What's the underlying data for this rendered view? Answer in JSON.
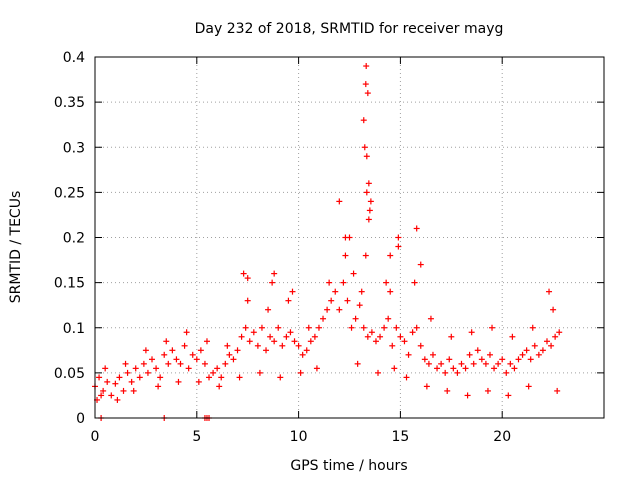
{
  "chart_data": {
    "type": "scatter",
    "title": "Day 232 of 2018, SRMTID for receiver mayg",
    "xlabel": "GPS time / hours",
    "ylabel": "SRMTID / TECUs",
    "xlim": [
      0,
      25
    ],
    "ylim": [
      0,
      0.4
    ],
    "x_ticks": [
      0,
      5,
      10,
      15,
      20
    ],
    "x_tick_labels": [
      "0",
      "5",
      "10",
      "15",
      "20"
    ],
    "y_ticks": [
      0,
      0.05,
      0.1,
      0.15,
      0.2,
      0.25,
      0.3,
      0.35,
      0.4
    ],
    "y_tick_labels": [
      "0",
      "0.05",
      "0.1",
      "0.15",
      "0.2",
      "0.25",
      "0.3",
      "0.35",
      "0.4"
    ],
    "grid": true,
    "marker": "+",
    "color": "#ff0000",
    "series": [
      {
        "name": "SRMTID",
        "points": [
          [
            0.0,
            0.035
          ],
          [
            0.2,
            0.045
          ],
          [
            0.4,
            0.03
          ],
          [
            0.6,
            0.04
          ],
          [
            0.8,
            0.025
          ],
          [
            1.0,
            0.038
          ],
          [
            1.2,
            0.045
          ],
          [
            1.4,
            0.03
          ],
          [
            1.6,
            0.05
          ],
          [
            1.8,
            0.04
          ],
          [
            2.0,
            0.055
          ],
          [
            2.2,
            0.045
          ],
          [
            2.4,
            0.06
          ],
          [
            2.6,
            0.05
          ],
          [
            2.8,
            0.065
          ],
          [
            3.0,
            0.055
          ],
          [
            3.2,
            0.045
          ],
          [
            3.4,
            0.07
          ],
          [
            3.6,
            0.06
          ],
          [
            3.8,
            0.075
          ],
          [
            4.0,
            0.065
          ],
          [
            4.2,
            0.06
          ],
          [
            4.4,
            0.08
          ],
          [
            4.6,
            0.055
          ],
          [
            4.8,
            0.07
          ],
          [
            5.0,
            0.065
          ],
          [
            5.2,
            0.075
          ],
          [
            5.4,
            0.06
          ],
          [
            5.6,
            0.045
          ],
          [
            5.8,
            0.05
          ],
          [
            6.0,
            0.055
          ],
          [
            6.2,
            0.045
          ],
          [
            6.4,
            0.06
          ],
          [
            6.6,
            0.07
          ],
          [
            6.8,
            0.065
          ],
          [
            7.0,
            0.075
          ],
          [
            7.2,
            0.09
          ],
          [
            7.4,
            0.1
          ],
          [
            7.6,
            0.085
          ],
          [
            7.8,
            0.095
          ],
          [
            8.0,
            0.08
          ],
          [
            8.2,
            0.1
          ],
          [
            8.4,
            0.075
          ],
          [
            8.6,
            0.09
          ],
          [
            8.8,
            0.085
          ],
          [
            9.0,
            0.1
          ],
          [
            9.2,
            0.08
          ],
          [
            9.4,
            0.09
          ],
          [
            9.6,
            0.095
          ],
          [
            9.8,
            0.085
          ],
          [
            10.0,
            0.08
          ],
          [
            10.2,
            0.07
          ],
          [
            10.4,
            0.075
          ],
          [
            10.6,
            0.085
          ],
          [
            10.8,
            0.09
          ],
          [
            11.0,
            0.1
          ],
          [
            11.2,
            0.11
          ],
          [
            11.4,
            0.12
          ],
          [
            11.6,
            0.13
          ],
          [
            11.8,
            0.14
          ],
          [
            12.0,
            0.12
          ],
          [
            12.2,
            0.15
          ],
          [
            12.4,
            0.13
          ],
          [
            12.6,
            0.1
          ],
          [
            12.8,
            0.11
          ],
          [
            13.0,
            0.125
          ],
          [
            13.2,
            0.1
          ],
          [
            13.4,
            0.09
          ],
          [
            13.6,
            0.095
          ],
          [
            13.8,
            0.085
          ],
          [
            14.0,
            0.09
          ],
          [
            14.2,
            0.1
          ],
          [
            14.4,
            0.11
          ],
          [
            14.6,
            0.08
          ],
          [
            14.8,
            0.1
          ],
          [
            15.0,
            0.09
          ],
          [
            15.2,
            0.085
          ],
          [
            15.4,
            0.07
          ],
          [
            15.6,
            0.095
          ],
          [
            15.8,
            0.1
          ],
          [
            16.0,
            0.08
          ],
          [
            16.2,
            0.065
          ],
          [
            16.4,
            0.06
          ],
          [
            16.6,
            0.07
          ],
          [
            16.8,
            0.055
          ],
          [
            17.0,
            0.06
          ],
          [
            17.2,
            0.05
          ],
          [
            17.4,
            0.065
          ],
          [
            17.6,
            0.055
          ],
          [
            17.8,
            0.05
          ],
          [
            18.0,
            0.06
          ],
          [
            18.2,
            0.055
          ],
          [
            18.4,
            0.07
          ],
          [
            18.6,
            0.06
          ],
          [
            18.8,
            0.075
          ],
          [
            19.0,
            0.065
          ],
          [
            19.2,
            0.06
          ],
          [
            19.4,
            0.07
          ],
          [
            19.6,
            0.055
          ],
          [
            19.8,
            0.06
          ],
          [
            20.0,
            0.065
          ],
          [
            20.2,
            0.05
          ],
          [
            20.4,
            0.06
          ],
          [
            20.6,
            0.055
          ],
          [
            20.8,
            0.065
          ],
          [
            21.0,
            0.07
          ],
          [
            21.2,
            0.075
          ],
          [
            21.4,
            0.065
          ],
          [
            21.6,
            0.08
          ],
          [
            21.8,
            0.07
          ],
          [
            22.0,
            0.075
          ],
          [
            22.2,
            0.085
          ],
          [
            22.4,
            0.08
          ],
          [
            22.6,
            0.09
          ],
          [
            22.8,
            0.095
          ],
          [
            0.5,
            0.055
          ],
          [
            1.5,
            0.06
          ],
          [
            2.5,
            0.075
          ],
          [
            3.5,
            0.085
          ],
          [
            4.5,
            0.095
          ],
          [
            5.5,
            0.085
          ],
          [
            6.5,
            0.08
          ],
          [
            7.5,
            0.13
          ],
          [
            8.5,
            0.12
          ],
          [
            9.5,
            0.13
          ],
          [
            10.5,
            0.1
          ],
          [
            11.5,
            0.15
          ],
          [
            12.3,
            0.18
          ],
          [
            12.5,
            0.2
          ],
          [
            12.7,
            0.16
          ],
          [
            13.1,
            0.14
          ],
          [
            13.3,
            0.18
          ],
          [
            13.35,
            0.25
          ],
          [
            13.45,
            0.22
          ],
          [
            13.55,
            0.24
          ],
          [
            14.3,
            0.15
          ],
          [
            14.5,
            0.14
          ],
          [
            14.9,
            0.19
          ],
          [
            15.7,
            0.15
          ],
          [
            16.5,
            0.11
          ],
          [
            17.5,
            0.09
          ],
          [
            18.5,
            0.095
          ],
          [
            19.5,
            0.1
          ],
          [
            20.5,
            0.09
          ],
          [
            21.5,
            0.1
          ],
          [
            22.5,
            0.12
          ],
          [
            22.3,
            0.14
          ],
          [
            7.3,
            0.16
          ],
          [
            8.7,
            0.15
          ],
          [
            9.7,
            0.14
          ],
          [
            12.0,
            0.24
          ],
          [
            12.3,
            0.2
          ],
          [
            13.2,
            0.33
          ],
          [
            13.25,
            0.3
          ],
          [
            13.3,
            0.37
          ],
          [
            13.32,
            0.39
          ],
          [
            13.4,
            0.36
          ],
          [
            13.35,
            0.29
          ],
          [
            13.45,
            0.26
          ],
          [
            13.5,
            0.23
          ],
          [
            14.5,
            0.18
          ],
          [
            14.9,
            0.2
          ],
          [
            15.8,
            0.21
          ],
          [
            16.0,
            0.17
          ],
          [
            7.5,
            0.155
          ],
          [
            8.8,
            0.16
          ],
          [
            0.1,
            0.02
          ],
          [
            0.3,
            0.025
          ],
          [
            1.1,
            0.02
          ],
          [
            1.9,
            0.03
          ],
          [
            3.1,
            0.035
          ],
          [
            4.1,
            0.04
          ],
          [
            5.1,
            0.04
          ],
          [
            6.1,
            0.035
          ],
          [
            7.1,
            0.045
          ],
          [
            8.1,
            0.05
          ],
          [
            9.1,
            0.045
          ],
          [
            10.1,
            0.05
          ],
          [
            10.9,
            0.055
          ],
          [
            12.9,
            0.06
          ],
          [
            13.9,
            0.05
          ],
          [
            14.7,
            0.055
          ],
          [
            15.3,
            0.045
          ],
          [
            16.3,
            0.035
          ],
          [
            17.3,
            0.03
          ],
          [
            18.3,
            0.025
          ],
          [
            19.3,
            0.03
          ],
          [
            20.3,
            0.025
          ],
          [
            21.3,
            0.035
          ],
          [
            22.7,
            0.03
          ],
          [
            0.3,
            0.0
          ],
          [
            3.4,
            0.0
          ],
          [
            5.4,
            0.0
          ],
          [
            5.5,
            0.0
          ],
          [
            5.6,
            0.0
          ]
        ]
      }
    ]
  }
}
